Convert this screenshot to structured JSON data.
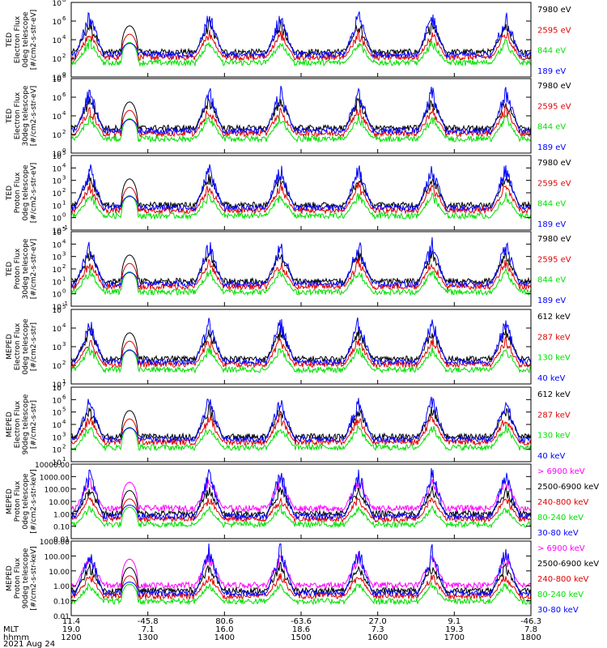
{
  "colors": {
    "black": "#000000",
    "red": "#e00000",
    "green": "#00e000",
    "blue": "#0000ff",
    "magenta": "#ff00ff"
  },
  "chart_data": [
    {
      "type": "line",
      "ylabel": [
        "TED",
        "Electron Flux",
        "0deg telescope",
        "[#/cm2-s-str-eV]"
      ],
      "yscale": "log",
      "ylim_exp": [
        0,
        8
      ],
      "yticks": [
        "10^0",
        "10^2",
        "10^4",
        "10^6",
        "10^8"
      ],
      "legend": [
        {
          "name": "7980 eV",
          "color": "black"
        },
        {
          "name": "2595 eV",
          "color": "red"
        },
        {
          "name": "844 eV",
          "color": "green"
        },
        {
          "name": "189 eV",
          "color": "blue"
        }
      ]
    },
    {
      "type": "line",
      "ylabel": [
        "TED",
        "Electron Flux",
        "30deg telescope",
        "[#/cm2-s-str-eV]"
      ],
      "yscale": "log",
      "ylim_exp": [
        0,
        8
      ],
      "yticks": [
        "10^0",
        "10^2",
        "10^4",
        "10^6",
        "10^8"
      ],
      "legend": [
        {
          "name": "7980 eV",
          "color": "black"
        },
        {
          "name": "2595 eV",
          "color": "red"
        },
        {
          "name": "844 eV",
          "color": "green"
        },
        {
          "name": "189 eV",
          "color": "blue"
        }
      ]
    },
    {
      "type": "line",
      "ylabel": [
        "TED",
        "Proton Flux",
        "0deg telescope",
        "[#/cm2-s-str-eV]"
      ],
      "yscale": "log",
      "ylim_exp": [
        -1,
        5
      ],
      "yticks": [
        "10^-1",
        "10^0",
        "10^1",
        "10^2",
        "10^3",
        "10^4",
        "10^5"
      ],
      "legend": [
        {
          "name": "7980 eV",
          "color": "black"
        },
        {
          "name": "2595 eV",
          "color": "red"
        },
        {
          "name": "844 eV",
          "color": "green"
        },
        {
          "name": "189 eV",
          "color": "blue"
        }
      ]
    },
    {
      "type": "line",
      "ylabel": [
        "TED",
        "Proton Flux",
        "30deg telescope",
        "[#/cm2-s-str-eV]"
      ],
      "yscale": "log",
      "ylim_exp": [
        -1,
        5
      ],
      "yticks": [
        "10^-1",
        "10^0",
        "10^1",
        "10^2",
        "10^3",
        "10^4",
        "10^5"
      ],
      "legend": [
        {
          "name": "7980 eV",
          "color": "black"
        },
        {
          "name": "2595 eV",
          "color": "red"
        },
        {
          "name": "844 eV",
          "color": "green"
        },
        {
          "name": "189 eV",
          "color": "blue"
        }
      ]
    },
    {
      "type": "line",
      "ylabel": [
        "MEPED",
        "Electron Flux",
        "0deg telescope",
        "[#/cm2-s-str]"
      ],
      "yscale": "log",
      "ylim_exp": [
        1,
        5
      ],
      "yticks": [
        "10^1",
        "10^2",
        "10^3",
        "10^4",
        "10^5"
      ],
      "legend": [
        {
          "name": "612 keV",
          "color": "black"
        },
        {
          "name": "287 keV",
          "color": "red"
        },
        {
          "name": "130 keV",
          "color": "green"
        },
        {
          "name": "40 keV",
          "color": "blue"
        }
      ]
    },
    {
      "type": "line",
      "ylabel": [
        "MEPED",
        "Electron Flux",
        "90deg telescope",
        "[#/cm2-s-str]"
      ],
      "yscale": "log",
      "ylim_exp": [
        1,
        7
      ],
      "yticks": [
        "10^1",
        "10^2",
        "10^3",
        "10^4",
        "10^5",
        "10^6",
        "10^7"
      ],
      "legend": [
        {
          "name": "612 keV",
          "color": "black"
        },
        {
          "name": "287 keV",
          "color": "red"
        },
        {
          "name": "130 keV",
          "color": "green"
        },
        {
          "name": "40 keV",
          "color": "blue"
        }
      ]
    },
    {
      "type": "line",
      "ylabel": [
        "MEPED",
        "Proton Flux",
        "0deg telescope",
        "[#/cm2-s-str-keV]"
      ],
      "yscale": "log",
      "ylim_exp": [
        -2,
        4
      ],
      "yticks": [
        "0.01",
        "0.10",
        "1.00",
        "10.00",
        "100.00",
        "1000.00",
        "10000.00"
      ],
      "legend": [
        {
          "name": "> 6900 keV",
          "color": "magenta"
        },
        {
          "name": "2500-6900 keV",
          "color": "black"
        },
        {
          "name": "240-800 keV",
          "color": "red"
        },
        {
          "name": "80-240 keV",
          "color": "green"
        },
        {
          "name": "30-80 keV",
          "color": "blue"
        }
      ]
    },
    {
      "type": "line",
      "ylabel": [
        "MEPED",
        "Proton Flux",
        "90deg telescope",
        "[#/cm2-s-str-keV]"
      ],
      "yscale": "log",
      "ylim_exp": [
        -2,
        3
      ],
      "yticks": [
        "0.01",
        "0.10",
        "1.00",
        "10.00",
        "100.00",
        "1000.00"
      ],
      "legend": [
        {
          "name": "> 6900 keV",
          "color": "magenta"
        },
        {
          "name": "2500-6900 keV",
          "color": "black"
        },
        {
          "name": "240-800 keV",
          "color": "red"
        },
        {
          "name": "80-240 keV",
          "color": "green"
        },
        {
          "name": "30-80 keV",
          "color": "blue"
        }
      ]
    }
  ],
  "xaxis": {
    "rows": [
      {
        "label": "",
        "values": [
          "11.4",
          "-45.8",
          "80.6",
          "-63.6",
          "27.0",
          "9.1",
          "-46.3"
        ]
      },
      {
        "label": "MLT",
        "values": [
          "19.0",
          "7.1",
          "16.0",
          "18.6",
          "7.3",
          "19.3",
          "7.8"
        ]
      },
      {
        "label": "hhmm",
        "values": [
          "1200",
          "1300",
          "1400",
          "1500",
          "1600",
          "1700",
          "1800"
        ]
      }
    ],
    "date": "2021 Aug 24"
  }
}
